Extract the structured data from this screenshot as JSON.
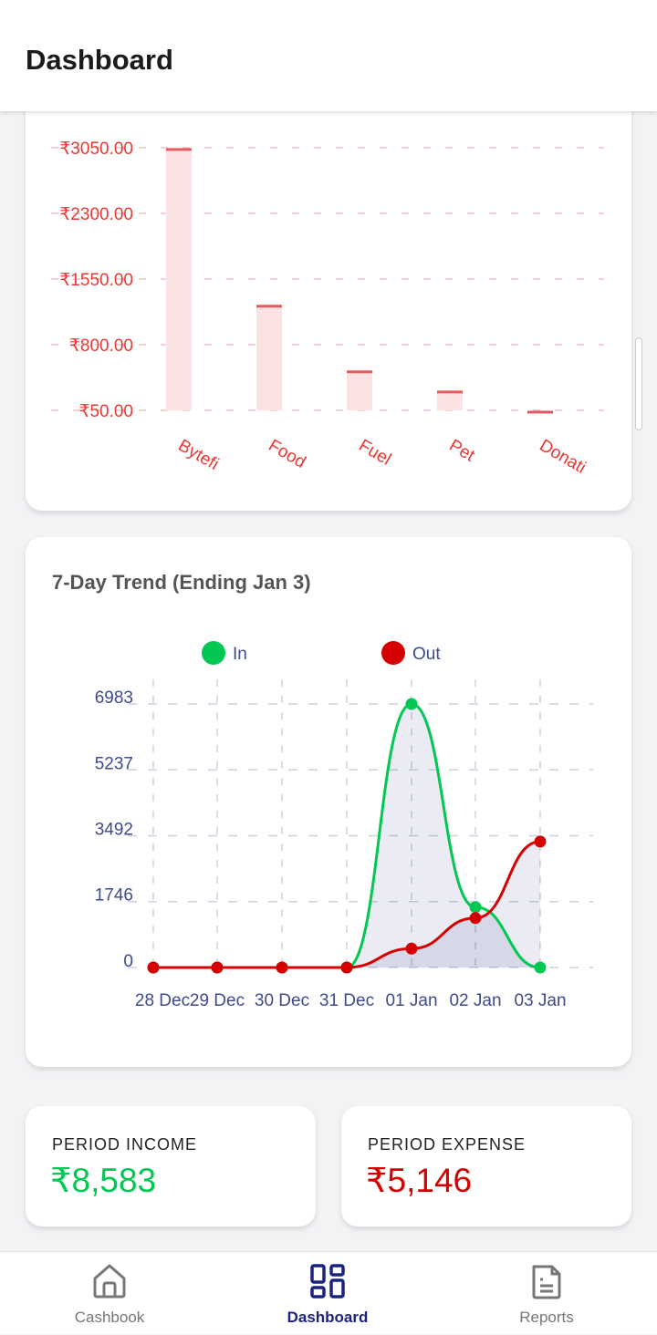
{
  "header": {
    "title": "Dashboard"
  },
  "chart_data": [
    {
      "type": "bar",
      "categories": [
        "Bytefi",
        "Food",
        "Fuel",
        "Pet",
        "Donati"
      ],
      "values": [
        3030,
        1240,
        490,
        260,
        30
      ],
      "yticks": [
        "₹3050.00",
        "₹2300.00",
        "₹1550.00",
        "₹800.00",
        "₹50.00"
      ],
      "ytick_values": [
        3050,
        2300,
        1550,
        800,
        50
      ],
      "ylim": [
        50,
        3050
      ],
      "grid": true,
      "color": "#e53935"
    },
    {
      "type": "line",
      "title": "7-Day Trend (Ending Jan 3)",
      "categories": [
        "28 Dec",
        "29 Dec",
        "30 Dec",
        "31 Dec",
        "01 Jan",
        "02 Jan",
        "03 Jan"
      ],
      "series": [
        {
          "name": "In",
          "values": [
            0,
            0,
            0,
            0,
            6983,
            1600,
            0
          ],
          "color": "#00c853"
        },
        {
          "name": "Out",
          "values": [
            0,
            0,
            0,
            0,
            500,
            1310,
            3336
          ],
          "color": "#d50000"
        }
      ],
      "yticks": [
        "6983",
        "5237",
        "3492",
        "1746",
        "0"
      ],
      "ytick_values": [
        6983,
        5237,
        3492,
        1746,
        0
      ],
      "ylim": [
        0,
        6983
      ],
      "grid": true,
      "legend": "top"
    }
  ],
  "stats": {
    "income_label": "PERIOD INCOME",
    "income_value": "₹8,583",
    "income_color": "#00c853",
    "expense_label": "PERIOD EXPENSE",
    "expense_value": "₹5,146",
    "expense_color": "#d50000"
  },
  "nav": [
    {
      "label": "Cashbook",
      "icon": "home-icon"
    },
    {
      "label": "Dashboard",
      "icon": "grid-icon",
      "active": true
    },
    {
      "label": "Reports",
      "icon": "document-icon"
    }
  ]
}
